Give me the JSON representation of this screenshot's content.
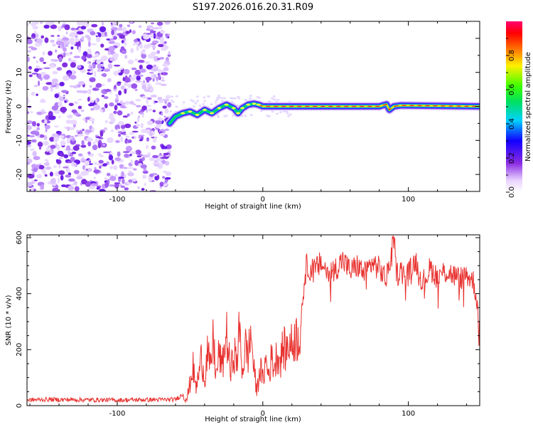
{
  "title": "S197.2026.016.20.31.R09",
  "chart_data": [
    {
      "type": "heatmap",
      "xlabel": "Height of straight line (km)",
      "ylabel": "Frequency (Hz)",
      "xlim": [
        -162,
        149
      ],
      "ylim": [
        -25,
        25
      ],
      "x_ticks": [
        "-100",
        "0",
        "100"
      ],
      "x_tick_values": [
        -100,
        0,
        100
      ],
      "y_ticks": [
        "-20",
        "-10",
        "0",
        "10",
        "20"
      ],
      "y_tick_values": [
        -20,
        -10,
        0,
        10,
        20
      ],
      "noise_region": {
        "x_from": -162,
        "x_to": -64
      },
      "signal_trace": {
        "x": [
          -64,
          -60,
          -55,
          -50,
          -45,
          -40,
          -35,
          -30,
          -25,
          -20,
          -17,
          -14,
          -10,
          -6,
          -3,
          0,
          20,
          80,
          85,
          87,
          90,
          95,
          149
        ],
        "y": [
          -5,
          -3,
          -2,
          -1.5,
          -2.5,
          -1,
          -2,
          -0.5,
          0.5,
          -0.5,
          -2,
          -0.5,
          0.5,
          0.8,
          0.5,
          0,
          0,
          0,
          0.6,
          -1,
          0,
          0.3,
          0
        ]
      },
      "colorbar": {
        "label": "Normalized spectral amplitude",
        "range": [
          0,
          1
        ],
        "ticks": [
          "0.0",
          "0.2",
          "0.4",
          "0.6",
          "0.8"
        ],
        "tick_values": [
          0,
          0.2,
          0.4,
          0.6,
          0.8
        ]
      }
    },
    {
      "type": "line",
      "xlabel": "Height of straight line (km)",
      "ylabel": "SNR (10 * v/v)",
      "xlim": [
        -162,
        149
      ],
      "ylim": [
        0,
        610
      ],
      "x_ticks": [
        "-100",
        "0",
        "100"
      ],
      "x_tick_values": [
        -100,
        0,
        100
      ],
      "y_ticks": [
        "0",
        "200",
        "400",
        "600"
      ],
      "y_tick_values": [
        0,
        200,
        400,
        600
      ],
      "series": [
        {
          "name": "SNR",
          "color": "#e8322f",
          "x": [
            -162,
            -150,
            -100,
            -60,
            -55,
            -52,
            -50,
            -48,
            -46,
            -44,
            -42,
            -40,
            -38,
            -36,
            -34,
            -32,
            -30,
            -28,
            -25,
            -22,
            -20,
            -18,
            -16,
            -14,
            -12,
            -10,
            -8,
            -6,
            -4,
            -2,
            0,
            2,
            4,
            6,
            8,
            10,
            12,
            14,
            16,
            18,
            20,
            22,
            24,
            26,
            27,
            28,
            30,
            35,
            40,
            45,
            50,
            55,
            60,
            65,
            70,
            75,
            80,
            85,
            88,
            90,
            92,
            95,
            100,
            105,
            110,
            115,
            120,
            125,
            130,
            135,
            140,
            145,
            147,
            149
          ],
          "y": [
            20,
            22,
            20,
            22,
            40,
            25,
            80,
            140,
            60,
            110,
            180,
            90,
            200,
            120,
            240,
            100,
            190,
            130,
            260,
            110,
            200,
            150,
            270,
            120,
            210,
            180,
            260,
            120,
            50,
            140,
            90,
            160,
            110,
            170,
            140,
            190,
            160,
            210,
            190,
            230,
            210,
            250,
            240,
            280,
            360,
            420,
            500,
            480,
            510,
            470,
            490,
            520,
            480,
            500,
            470,
            510,
            490,
            450,
            540,
            600,
            470,
            480,
            470,
            520,
            440,
            490,
            460,
            480,
            470,
            450,
            470,
            440,
            380,
            250
          ]
        }
      ]
    }
  ]
}
